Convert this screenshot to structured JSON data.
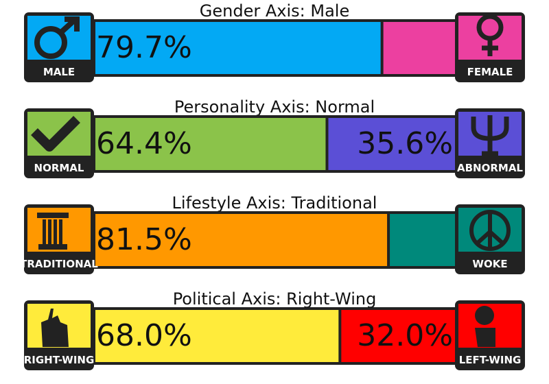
{
  "axes": [
    {
      "title": "Gender Axis: Male",
      "left": {
        "label": "MALE",
        "value": 79.7,
        "value_label": "79.7%",
        "color": "#03a9f4"
      },
      "right": {
        "label": "FEMALE",
        "value": 20.3,
        "color": "#ec40a0"
      }
    },
    {
      "title": "Personality Axis: Normal",
      "left": {
        "label": "NORMAL",
        "value": 64.4,
        "value_label": "64.4%",
        "color": "#8bc34a"
      },
      "right": {
        "label": "ABNORMAL",
        "value": 35.6,
        "value_label": "35.6%",
        "color": "#5b4fd6"
      }
    },
    {
      "title": "Lifestyle Axis: Traditional",
      "left": {
        "label": "TRADITIONAL",
        "value": 81.5,
        "value_label": "81.5%",
        "color": "#ff9800"
      },
      "right": {
        "label": "WOKE",
        "value": 18.5,
        "color": "#00897b"
      }
    },
    {
      "title": "Political Axis: Right-Wing",
      "left": {
        "label": "RIGHT-WING",
        "value": 68.0,
        "value_label": "68.0%",
        "color": "#ffeb3b"
      },
      "right": {
        "label": "LEFT-WING",
        "value": 32.0,
        "value_label": "32.0%",
        "color": "#ff0000"
      }
    }
  ]
}
